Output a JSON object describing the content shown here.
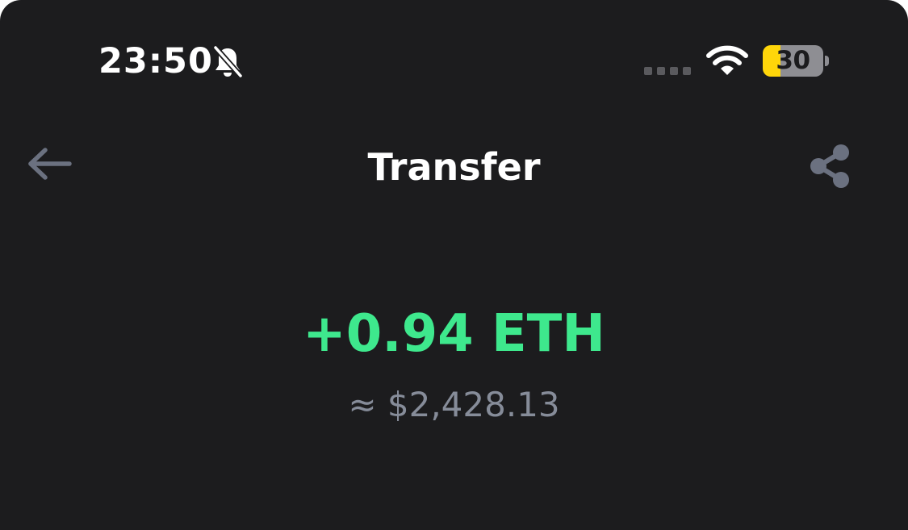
{
  "status_bar": {
    "time": "23:50",
    "battery_level": "30",
    "icons": [
      "bell-slash-icon",
      "cellular-signal-icon",
      "wifi-icon",
      "battery-icon"
    ],
    "battery_color": "#ffd60a"
  },
  "nav": {
    "title": "Transfer",
    "back_icon": "arrow-left-icon",
    "share_icon": "share-icon"
  },
  "transaction": {
    "amount": "+0.94 ETH",
    "fiat_value": "≈ $2,428.13",
    "amount_color": "#3ee88d"
  },
  "colors": {
    "background": "#1c1c1e",
    "icon_gray": "#6b7180",
    "text_secondary": "#868c99"
  }
}
